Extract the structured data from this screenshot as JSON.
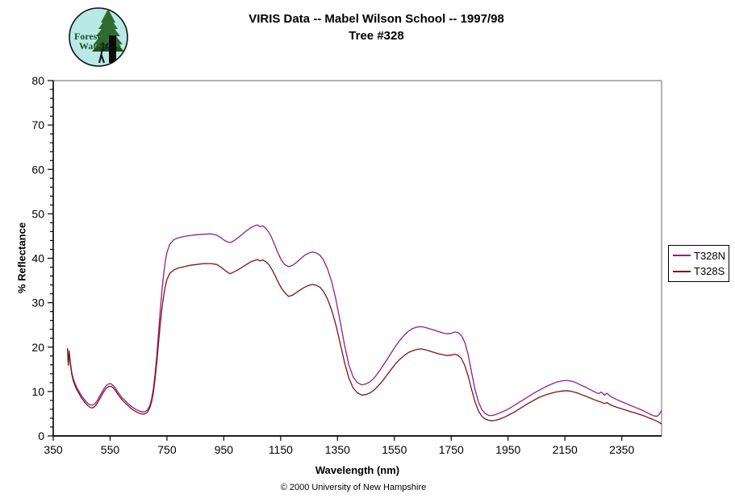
{
  "page": {
    "title_line1": "VIRIS Data -- Mabel Wilson School -- 1997/98",
    "title_line2": "Tree #328",
    "footer": "© 2000 University of New Hampshire"
  },
  "logo": {
    "text_line1": "Forest",
    "text_line2": "Watch",
    "bg_color": "#b9e9e6",
    "tree_color": "#2f6b2f",
    "tree_dark_color": "#1e4d1e",
    "text_color": "#17501f"
  },
  "chart_data": {
    "type": "line",
    "title": "VIRIS Data -- Mabel Wilson School -- 1997/98 / Tree #328",
    "xlabel": "Wavelength (nm)",
    "ylabel": "% Reflectance",
    "xlim": [
      350,
      2490
    ],
    "ylim": [
      0,
      80
    ],
    "x_ticks": [
      350,
      550,
      750,
      950,
      1150,
      1350,
      1550,
      1750,
      1950,
      2150,
      2350
    ],
    "y_ticks": [
      0,
      10,
      20,
      30,
      40,
      50,
      60,
      70,
      80
    ],
    "y_minor_step": 2,
    "grid": false,
    "legend_position": "right",
    "axis_color": "#000000",
    "border_color": "#848284",
    "x": [
      400,
      403,
      406,
      410,
      415,
      420,
      426,
      432,
      440,
      448,
      456,
      464,
      472,
      480,
      488,
      496,
      504,
      512,
      520,
      528,
      536,
      544,
      552,
      560,
      568,
      576,
      584,
      592,
      600,
      610,
      620,
      630,
      640,
      650,
      658,
      666,
      674,
      682,
      690,
      696,
      702,
      708,
      714,
      720,
      726,
      732,
      738,
      744,
      750,
      760,
      775,
      790,
      810,
      830,
      855,
      880,
      905,
      925,
      940,
      955,
      972,
      985,
      1000,
      1015,
      1030,
      1045,
      1058,
      1068,
      1078,
      1088,
      1098,
      1108,
      1118,
      1128,
      1140,
      1152,
      1164,
      1178,
      1192,
      1206,
      1220,
      1235,
      1250,
      1262,
      1275,
      1288,
      1300,
      1315,
      1330,
      1345,
      1360,
      1375,
      1390,
      1405,
      1420,
      1435,
      1450,
      1465,
      1480,
      1495,
      1510,
      1525,
      1540,
      1555,
      1570,
      1585,
      1600,
      1615,
      1630,
      1645,
      1660,
      1675,
      1690,
      1705,
      1720,
      1735,
      1750,
      1762,
      1774,
      1786,
      1798,
      1810,
      1822,
      1834,
      1846,
      1858,
      1870,
      1882,
      1895,
      1910,
      1925,
      1940,
      1955,
      1970,
      1985,
      2000,
      2020,
      2040,
      2060,
      2080,
      2100,
      2120,
      2140,
      2158,
      2175,
      2192,
      2208,
      2225,
      2240,
      2255,
      2268,
      2278,
      2288,
      2298,
      2310,
      2322,
      2335,
      2350,
      2365,
      2380,
      2395,
      2410,
      2425,
      2440,
      2452,
      2464,
      2474,
      2482,
      2490
    ],
    "series": [
      {
        "name": "T328N",
        "color": "#8f1d8f",
        "values": [
          19.8,
          16.3,
          19.2,
          16.8,
          14.3,
          13.0,
          11.9,
          11.0,
          10.1,
          9.2,
          8.5,
          7.8,
          7.3,
          7.0,
          6.9,
          7.2,
          7.9,
          8.8,
          9.7,
          10.6,
          11.3,
          11.7,
          11.8,
          11.4,
          10.8,
          10.0,
          9.3,
          8.6,
          8.1,
          7.5,
          6.9,
          6.4,
          6.0,
          5.7,
          5.5,
          5.4,
          5.5,
          5.9,
          6.9,
          8.3,
          10.5,
          13.8,
          18.0,
          23.0,
          28.0,
          32.5,
          36.2,
          39.2,
          41.3,
          43.2,
          44.2,
          44.6,
          44.9,
          45.1,
          45.3,
          45.4,
          45.5,
          45.2,
          44.6,
          43.9,
          43.5,
          43.9,
          44.6,
          45.4,
          46.2,
          46.9,
          47.3,
          47.5,
          47.1,
          47.3,
          46.7,
          45.9,
          44.7,
          43.2,
          41.3,
          39.6,
          38.6,
          38.1,
          38.4,
          39.1,
          39.9,
          40.7,
          41.2,
          41.4,
          41.2,
          40.7,
          39.7,
          37.6,
          34.6,
          30.5,
          25.5,
          20.4,
          16.0,
          13.3,
          12.0,
          11.5,
          11.7,
          12.2,
          13.1,
          14.4,
          15.8,
          17.3,
          18.8,
          20.3,
          21.6,
          22.7,
          23.6,
          24.2,
          24.5,
          24.6,
          24.4,
          24.1,
          23.8,
          23.5,
          23.2,
          23.0,
          23.1,
          23.4,
          23.3,
          22.6,
          21.0,
          18.2,
          14.2,
          10.4,
          7.6,
          5.9,
          5.0,
          4.6,
          4.6,
          4.9,
          5.3,
          5.7,
          6.2,
          6.8,
          7.4,
          8.0,
          8.8,
          9.6,
          10.3,
          11.0,
          11.6,
          12.1,
          12.4,
          12.5,
          12.3,
          11.9,
          11.4,
          10.9,
          10.4,
          9.9,
          9.5,
          9.9,
          9.2,
          9.6,
          8.9,
          8.5,
          8.1,
          7.7,
          7.3,
          6.9,
          6.5,
          6.1,
          5.7,
          5.2,
          4.8,
          4.5,
          4.4,
          4.9,
          5.7
        ]
      },
      {
        "name": "T328S",
        "color": "#7f1212",
        "values": [
          19.5,
          15.9,
          18.8,
          16.4,
          13.9,
          12.5,
          11.4,
          10.5,
          9.6,
          8.7,
          8.0,
          7.3,
          6.8,
          6.4,
          6.3,
          6.6,
          7.3,
          8.2,
          9.1,
          10.0,
          10.7,
          11.1,
          11.2,
          10.9,
          10.3,
          9.5,
          8.8,
          8.1,
          7.6,
          7.0,
          6.4,
          5.9,
          5.5,
          5.2,
          5.0,
          4.9,
          5.0,
          5.4,
          6.4,
          7.7,
          9.7,
          12.7,
          16.5,
          20.8,
          24.9,
          28.5,
          31.4,
          33.6,
          35.2,
          36.6,
          37.4,
          37.8,
          38.1,
          38.4,
          38.6,
          38.8,
          38.8,
          38.6,
          38.0,
          37.2,
          36.5,
          36.9,
          37.4,
          38.0,
          38.6,
          39.2,
          39.5,
          39.7,
          39.4,
          39.6,
          39.2,
          38.6,
          37.6,
          36.4,
          34.8,
          33.3,
          32.3,
          31.4,
          31.7,
          32.3,
          32.9,
          33.5,
          33.9,
          34.1,
          33.9,
          33.5,
          32.6,
          30.8,
          28.2,
          24.8,
          20.6,
          16.5,
          13.0,
          10.8,
          9.7,
          9.2,
          9.3,
          9.7,
          10.4,
          11.4,
          12.5,
          13.8,
          15.1,
          16.3,
          17.3,
          18.1,
          18.8,
          19.2,
          19.5,
          19.6,
          19.4,
          19.1,
          18.8,
          18.5,
          18.3,
          18.1,
          18.2,
          18.4,
          18.2,
          17.4,
          15.8,
          13.4,
          10.4,
          7.6,
          5.6,
          4.4,
          3.8,
          3.5,
          3.4,
          3.6,
          3.9,
          4.3,
          4.8,
          5.3,
          5.9,
          6.5,
          7.3,
          8.0,
          8.7,
          9.2,
          9.6,
          9.9,
          10.1,
          10.2,
          10.0,
          9.7,
          9.3,
          8.9,
          8.5,
          8.1,
          7.8,
          7.6,
          7.3,
          7.5,
          7.0,
          6.7,
          6.4,
          6.1,
          5.8,
          5.5,
          5.2,
          4.9,
          4.6,
          4.2,
          3.9,
          3.6,
          3.3,
          3.0,
          2.7
        ]
      }
    ]
  }
}
